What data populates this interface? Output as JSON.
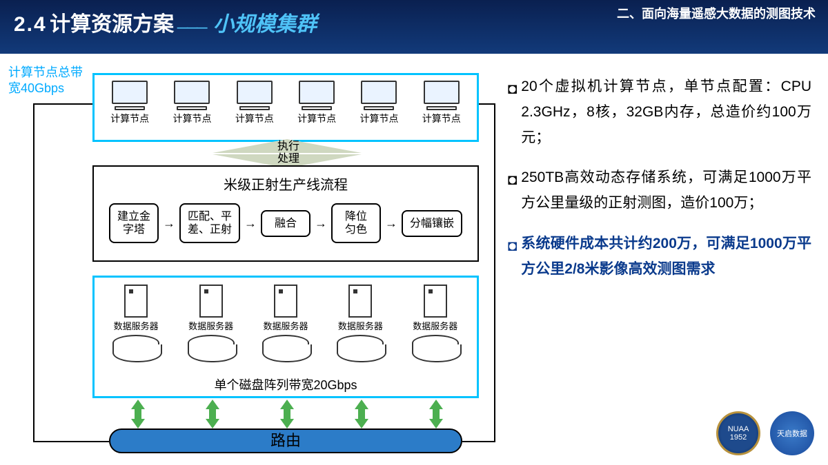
{
  "header": {
    "section_no": "2.4",
    "section_title": "计算资源方案",
    "dash": "———",
    "sub_title": "小规模集群",
    "chapter": "二、面向海量遥感大数据的测图技术"
  },
  "diagram": {
    "side_label": "计算节点总带宽40Gbps",
    "compute_node_label": "计算节点",
    "compute_node_count": 6,
    "exec_label": "执行\n处理",
    "pipeline_title": "米级正射生产线流程",
    "stages": [
      "建立金\n字塔",
      "匹配、平\n差、正射",
      "融合",
      "降位\n匀色",
      "分幅镶嵌"
    ],
    "server_label": "数据服务器",
    "server_count": 5,
    "disk_label": "单个磁盘阵列带宽20Gbps",
    "router_label": "路由",
    "colors": {
      "box_border": "#00c3ff",
      "router_fill": "#2c7cc8",
      "arrow_green": "#4caf50",
      "exec_fill": "#cfd8c0"
    }
  },
  "bullets": [
    {
      "glyph": "◘",
      "text": "20个虚拟机计算节点，单节点配置：CPU 2.3GHz，8核，32GB内存，总造价约100万元；",
      "emph": false
    },
    {
      "glyph": "◘",
      "text": "250TB高效动态存储系统，可满足1000万平方公里量级的正射测图，造价100万；",
      "emph": false
    },
    {
      "glyph": "◘",
      "text": "系统硬件成本共计约200万，可满足1000万平方公里2/8米影像高效测图需求",
      "emph": true
    }
  ],
  "logos": {
    "l1": "NUAA\n1952",
    "l2": "天启数据"
  }
}
